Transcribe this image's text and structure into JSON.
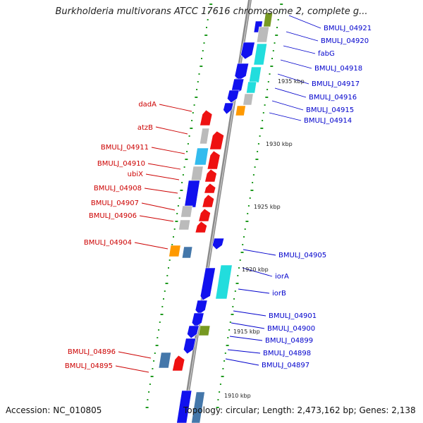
{
  "title": "Burkholderia multivorans ATCC 17616 chromosome 2, complete g...",
  "accession_text": "Accession: NC_010805",
  "topology_text": "Topology: circular; Length: 2,473,162 bp; Genes: 2,138",
  "colors": {
    "backbone": "#8a8a8a",
    "tick": "#1f9a1f",
    "left_label": "#cc0000",
    "right_label": "#0000cc",
    "red_gene": "#ee1111",
    "blue_gene": "#1111ee",
    "cyan_gene": "#22dddd",
    "sky_gene": "#33bbee",
    "grey_gene": "#bbbbbb",
    "orange_gene": "#ff9900",
    "olive_gene": "#779922",
    "steel_gene": "#4477aa"
  },
  "scale_labels": [
    "1935 kbp",
    "1930 kbp",
    "1925 kbp",
    "1920 kbp",
    "1915 kbp",
    "1910 kbp"
  ],
  "left_gene_labels": [
    "dadA",
    "atzB",
    "BMULJ_04911",
    "BMULJ_04910",
    "ubiX",
    "BMULJ_04908",
    "BMULJ_04907",
    "BMULJ_04906",
    "BMULJ_04904",
    "BMULJ_04896",
    "BMULJ_04895"
  ],
  "right_gene_labels": [
    "BMULJ_04921",
    "BMULJ_04920",
    "fabG",
    "BMULJ_04918",
    "BMULJ_04917",
    "BMULJ_04916",
    "BMULJ_04915",
    "BMULJ_04914",
    "BMULJ_04905",
    "iorA",
    "iorB",
    "BMULJ_04901",
    "BMULJ_04900",
    "BMULJ_04899",
    "BMULJ_04898",
    "BMULJ_04897"
  ]
}
